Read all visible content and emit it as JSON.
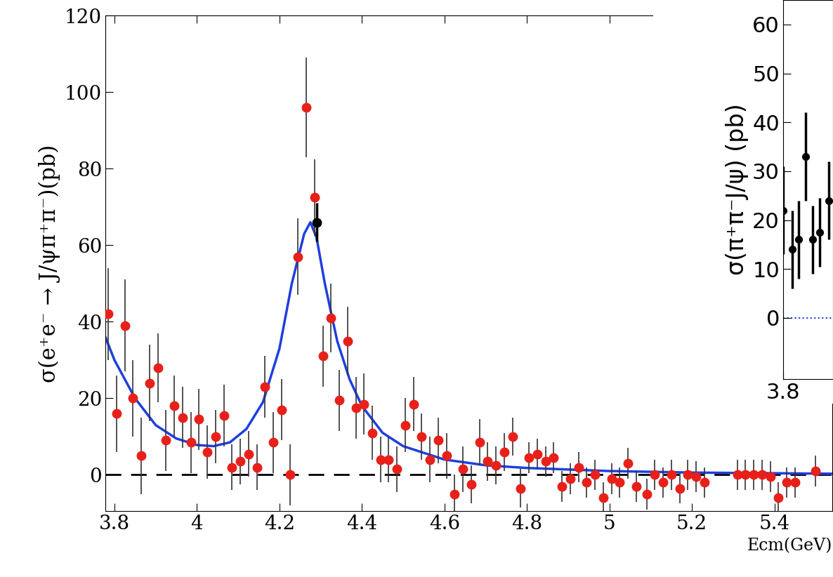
{
  "chart_data": [
    {
      "type": "scatter",
      "y_label": "σ(e⁺e⁻ → J/ψπ⁺π⁻)(pb)",
      "x_label": "Ecm(GeV)",
      "xlim": [
        3.778,
        5.54
      ],
      "xticks": [
        3.8,
        {
          "value": 4.0,
          "label": "4"
        },
        4.2,
        4.4,
        4.6,
        4.8,
        {
          "value": 5.0,
          "label": "5"
        },
        5.2,
        5.4
      ],
      "ylim": [
        -9.5,
        120
      ],
      "yticks": [
        0,
        20,
        40,
        60,
        80,
        100,
        120
      ],
      "grid": false,
      "series": [
        {
          "type": "scatter",
          "color": "#e8201a",
          "marker": "circle",
          "x": [
            3.785,
            3.805,
            3.825,
            3.845,
            3.865,
            3.885,
            3.905,
            3.925,
            3.945,
            3.965,
            3.985,
            4.005,
            4.025,
            4.045,
            4.065,
            4.085,
            4.105,
            4.125,
            4.145,
            4.165,
            4.185,
            4.205,
            4.225,
            4.245,
            4.265,
            4.285,
            4.305,
            4.325,
            4.345,
            4.365,
            4.385,
            4.405,
            4.425,
            4.445,
            4.465,
            4.485,
            4.505,
            4.525,
            4.545,
            4.565,
            4.585,
            4.605,
            4.625,
            4.645,
            4.665,
            4.685,
            4.705,
            4.725,
            4.745,
            4.765,
            4.785,
            4.805,
            4.825,
            4.845,
            4.865,
            4.885,
            4.905,
            4.925,
            4.945,
            4.965,
            4.985,
            5.005,
            5.025,
            5.045,
            5.065,
            5.09,
            5.11,
            5.13,
            5.15,
            5.17,
            5.19,
            5.21,
            5.23,
            5.31,
            5.33,
            5.35,
            5.37,
            5.39,
            5.41,
            5.43,
            5.45,
            5.5
          ],
          "values": [
            42,
            16,
            39,
            20,
            5,
            24,
            28,
            9,
            18,
            15,
            8.5,
            14.5,
            6,
            10,
            15.5,
            2,
            3.5,
            5.5,
            2,
            23,
            8.5,
            17,
            0,
            57,
            96,
            72.5,
            31,
            41,
            19.5,
            35,
            17.5,
            18.5,
            11,
            4,
            4,
            1.5,
            13,
            18.5,
            10,
            4,
            9,
            5,
            -5,
            1.5,
            -2.5,
            8.5,
            3.5,
            2.5,
            6,
            10,
            -3.5,
            4.5,
            5.5,
            3.5,
            4.5,
            -3,
            -1,
            2,
            -2,
            0,
            -6,
            -1,
            -2,
            3,
            -3,
            -5,
            0,
            -2,
            0,
            -3.5,
            0,
            -0.5,
            -2,
            0,
            0,
            0,
            0,
            -0.5,
            -6,
            -2,
            -2,
            1
          ],
          "errors": [
            12,
            10,
            12,
            10,
            10,
            10,
            9,
            8,
            8,
            8,
            8,
            8,
            7,
            7,
            8,
            6,
            6,
            6,
            6,
            8,
            8,
            8,
            8,
            10,
            13,
            10,
            8,
            9,
            8,
            9,
            8,
            8,
            7,
            6,
            6,
            6,
            7,
            7,
            6,
            6,
            6,
            6,
            5,
            6,
            5,
            6,
            5,
            5,
            5,
            5,
            5,
            4,
            4,
            4,
            4,
            4,
            4,
            4,
            4,
            4,
            4,
            4,
            4,
            4,
            4,
            4,
            4,
            4,
            4,
            4,
            4,
            4,
            4,
            4,
            4,
            4,
            4,
            4,
            4,
            4,
            4,
            4
          ]
        },
        {
          "type": "line",
          "color": "#1f3fdf",
          "line_style": "solid",
          "x": [
            3.778,
            3.8,
            3.85,
            3.9,
            3.95,
            4.0,
            4.04,
            4.08,
            4.12,
            4.16,
            4.2,
            4.23,
            4.26,
            4.275,
            4.29,
            4.31,
            4.34,
            4.37,
            4.4,
            4.45,
            4.5,
            4.6,
            4.7,
            4.8,
            5.0,
            5.2,
            5.54
          ],
          "values": [
            36,
            30,
            20,
            13,
            9.5,
            7.8,
            7.5,
            8.5,
            12,
            19,
            33,
            50,
            63,
            66,
            62,
            50,
            35,
            25,
            18,
            11,
            7.5,
            4,
            2.5,
            1.8,
            1,
            0.6,
            0.3
          ]
        },
        {
          "type": "scatter",
          "color": "#000000",
          "marker": "circle",
          "x": [
            4.29
          ],
          "values": [
            66
          ],
          "errors": [
            5
          ]
        },
        {
          "type": "hline",
          "color": "#000000",
          "line_style": "dashed",
          "values": [
            0
          ]
        }
      ]
    },
    {
      "type": "scatter",
      "y_label": "σ(π⁺π⁻J/ψ) (pb)",
      "xlim": [
        3.8,
        3.9
      ],
      "xticks": [
        3.8
      ],
      "ylim": [
        -12.5,
        65
      ],
      "yticks": [
        0,
        10,
        20,
        30,
        40,
        50,
        60
      ],
      "grid": false,
      "series": [
        {
          "type": "scatter",
          "color": "#000000",
          "marker": "circle",
          "x": [
            3.8,
            3.818,
            3.831,
            3.845,
            3.859,
            3.873,
            3.892
          ],
          "values": [
            22,
            14,
            16,
            33,
            16,
            17.5,
            24
          ],
          "errors": [
            9,
            8,
            8,
            9,
            7,
            7,
            8
          ]
        },
        {
          "type": "hline",
          "color": "#1f3fdf",
          "line_style": "dotted",
          "values": [
            0
          ]
        }
      ]
    }
  ]
}
